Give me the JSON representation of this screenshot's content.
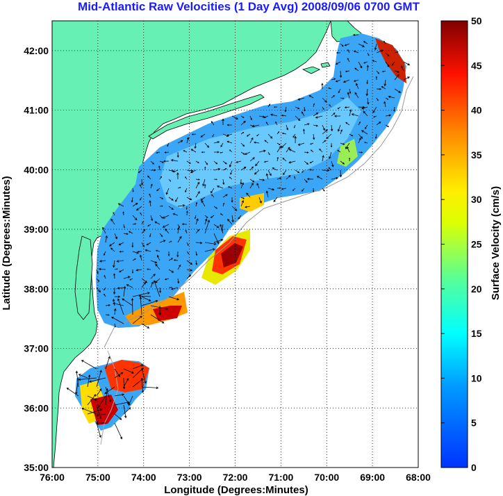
{
  "title": "Mid-Atlantic Raw Velocities (1 Day Avg) 2008/09/06 0700 GMT",
  "map": {
    "xlabel": "Longitude (Degrees:Minutes)",
    "ylabel": "Latitude (Degrees:Minutes)",
    "x_ticks": [
      "76:00",
      "75:00",
      "74:00",
      "73:00",
      "72:00",
      "71:00",
      "70:00",
      "69:00",
      "68:00"
    ],
    "y_ticks": [
      "42:00",
      "41:00",
      "40:00",
      "39:00",
      "38:00",
      "37:00",
      "36:00",
      "35:00"
    ],
    "lon_range": [
      -76,
      -68
    ],
    "lat_range": [
      35,
      42.5
    ],
    "grid": "dotted",
    "land_color": "#66f0b4",
    "colorbar": {
      "label": "Surface Velocity (cm/s)",
      "ticks": [
        "50",
        "45",
        "40",
        "35",
        "30",
        "25",
        "20",
        "15",
        "10",
        "5",
        "0"
      ],
      "range": [
        0,
        50
      ]
    }
  }
}
